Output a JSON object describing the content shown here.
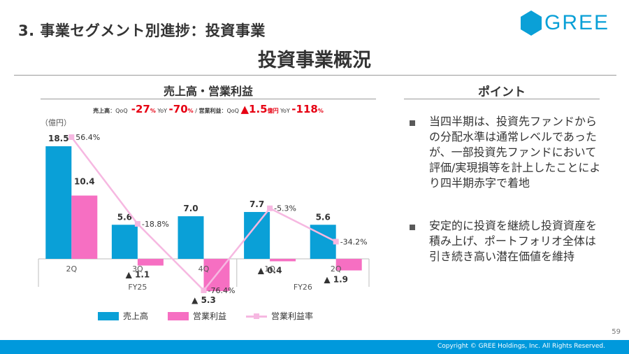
{
  "header": {
    "section_title": "3. 事業セグメント別進捗：投資事業",
    "logo_text": "GREE",
    "page_title": "投資事業概況"
  },
  "chart_panel": {
    "header": "売上高・営業利益",
    "summary": {
      "sales_label": "売上高",
      "sales_qoq_label": "：QoQ",
      "sales_qoq_value": "-27",
      "sales_qoq_unit": "%",
      "sales_yoy_label": " YoY ",
      "sales_yoy_value": "-70",
      "sales_yoy_unit": "%",
      "divider": " / ",
      "op_label": "営業利益",
      "op_qoq_label": "：QoQ ",
      "op_qoq_value": "▲1.5",
      "op_qoq_unit": "億円",
      "op_yoy_label": " YoY ",
      "op_yoy_value": "-118",
      "op_yoy_unit": "%"
    }
  },
  "chart_data": {
    "type": "bar",
    "unit_label": "（億円）",
    "categories": [
      "2Q",
      "3Q",
      "4Q",
      "1Q",
      "2Q"
    ],
    "groups": [
      {
        "label": "FY25",
        "span": [
          0,
          2
        ]
      },
      {
        "label": "FY26",
        "span": [
          3,
          4
        ]
      }
    ],
    "series": [
      {
        "name": "売上高",
        "kind": "bar",
        "color": "#0aa0d7",
        "values": [
          18.5,
          5.6,
          7.0,
          7.7,
          5.6
        ],
        "labels": [
          "18.5",
          "5.6",
          "7.0",
          "7.7",
          "5.6"
        ]
      },
      {
        "name": "営業利益",
        "kind": "bar",
        "color": "#f66fc2",
        "values": [
          10.4,
          -1.1,
          -5.3,
          -0.4,
          -1.9
        ],
        "labels": [
          "10.4",
          "▲ 1.1",
          "▲ 5.3",
          "▲ 0.4",
          "▲ 1.9"
        ]
      },
      {
        "name": "営業利益率",
        "kind": "line",
        "color": "#f6b8e1",
        "values": [
          56.4,
          -18.8,
          -76.4,
          -5.3,
          -34.2
        ],
        "labels": [
          "56.4%",
          "-18.8%",
          "-76.4%",
          "-5.3%",
          "-34.2%"
        ]
      }
    ],
    "legend": [
      "売上高",
      "営業利益",
      "営業利益率"
    ],
    "legend_position": "bottom"
  },
  "points": {
    "header": "ポイント",
    "items": [
      "当四半期は、投資先ファンドからの分配水準は通常レベルであったが、一部投資先ファンドにおいて評価/実現損等を計上したことにより四半期赤字で着地",
      "安定的に投資を継続し投資資産を積み上げ、ポートフォリオ全体は引き続き高い潜在価値を維持"
    ]
  },
  "footer": {
    "page_number": "59",
    "copyright": "Copyright © GREE Holdings, Inc. All Rights Reserved."
  },
  "colors": {
    "brand": "#0aa0d7",
    "footer_bar": "#0099dc",
    "sales_bar": "#0aa0d7",
    "op_bar": "#f66fc2",
    "margin_line": "#f6b8e1",
    "negative_text": "#e60012"
  }
}
